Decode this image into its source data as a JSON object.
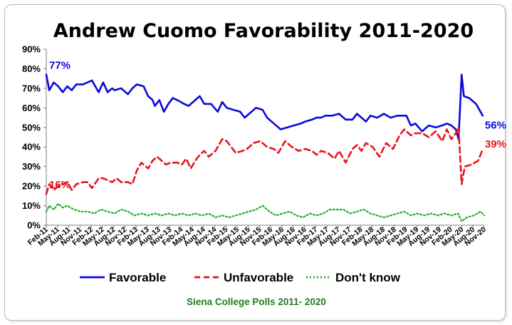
{
  "chart_data": {
    "type": "line",
    "title": "Andrew Cuomo Favorability 2011-2020",
    "source": "Siena College Polls 2011- 2020",
    "ylim": [
      0,
      90
    ],
    "y_ticks": [
      "0%",
      "10%",
      "20%",
      "30%",
      "40%",
      "50%",
      "60%",
      "70%",
      "80%",
      "90%"
    ],
    "y_unit": "%",
    "grid": false,
    "legend_position": "bottom",
    "x_tick_labels": [
      "Feb-11",
      "May-11",
      "Aug-11",
      "Nov-11",
      "Feb-12",
      "May-12",
      "Aug-12",
      "Nov-12",
      "Feb-13",
      "May-13",
      "Aug-13",
      "Nov-13",
      "Feb-14",
      "May-14",
      "Aug-14",
      "Nov-14",
      "Feb-15",
      "May-15",
      "Aug-15",
      "Nov-15",
      "Feb-16",
      "May-16",
      "Aug-16",
      "Nov-16",
      "Feb-17",
      "May-17",
      "Aug-17",
      "Nov-17",
      "Feb-18",
      "May-18",
      "Aug-18",
      "Nov-18",
      "Feb-19",
      "May-19",
      "Aug-19",
      "Nov-19",
      "Feb-20",
      "May-20",
      "Aug-20",
      "Nov-20"
    ],
    "x_ticks": [
      2011.083,
      2011.333,
      2011.583,
      2011.833,
      2012.083,
      2012.333,
      2012.583,
      2012.833,
      2013.083,
      2013.333,
      2013.583,
      2013.833,
      2014.083,
      2014.333,
      2014.583,
      2014.833,
      2015.083,
      2015.333,
      2015.583,
      2015.833,
      2016.083,
      2016.333,
      2016.583,
      2016.833,
      2017.083,
      2017.333,
      2017.583,
      2017.833,
      2018.083,
      2018.333,
      2018.583,
      2018.833,
      2019.083,
      2019.333,
      2019.583,
      2019.833,
      2020.083,
      2020.333,
      2020.583,
      2020.833
    ],
    "xlim": [
      2011.083,
      2020.833
    ],
    "series": [
      {
        "name": "Favorable",
        "color": "#0a0ad8",
        "dash": "solid",
        "x": [
          2011.083,
          2011.15,
          2011.25,
          2011.35,
          2011.45,
          2011.55,
          2011.65,
          2011.75,
          2011.9,
          2012.0,
          2012.1,
          2012.25,
          2012.35,
          2012.45,
          2012.55,
          2012.6,
          2012.75,
          2012.9,
          2013.0,
          2013.1,
          2013.25,
          2013.35,
          2013.45,
          2013.5,
          2013.6,
          2013.7,
          2013.8,
          2013.9,
          2014.0,
          2014.15,
          2014.25,
          2014.35,
          2014.5,
          2014.6,
          2014.75,
          2014.9,
          2015.0,
          2015.1,
          2015.25,
          2015.4,
          2015.5,
          2015.6,
          2015.75,
          2015.9,
          2016.0,
          2016.15,
          2016.3,
          2016.45,
          2016.6,
          2016.75,
          2016.85,
          2017.0,
          2017.1,
          2017.2,
          2017.3,
          2017.45,
          2017.6,
          2017.75,
          2017.9,
          2018.0,
          2018.1,
          2018.2,
          2018.3,
          2018.45,
          2018.6,
          2018.75,
          2018.9,
          2019.0,
          2019.1,
          2019.2,
          2019.3,
          2019.45,
          2019.6,
          2019.75,
          2019.9,
          2020.0,
          2020.1,
          2020.2,
          2020.26,
          2020.33,
          2020.38,
          2020.5,
          2020.65,
          2020.8
        ],
        "values": [
          77,
          69,
          73,
          71,
          68,
          71,
          69,
          72,
          72,
          73,
          74,
          68,
          73,
          68,
          70,
          69,
          70,
          67,
          70,
          72,
          71,
          66,
          64,
          61,
          64,
          58,
          62,
          65,
          64,
          62,
          61,
          63,
          66,
          62,
          62,
          58,
          63,
          60,
          59,
          58,
          55,
          57,
          60,
          59,
          55,
          52,
          49,
          50,
          51,
          52,
          53,
          54,
          55,
          55,
          56,
          56,
          57,
          54,
          54,
          57,
          55,
          53,
          56,
          55,
          57,
          55,
          56,
          56,
          56,
          51,
          52,
          48,
          51,
          50,
          51,
          52,
          51,
          49,
          44,
          77,
          66,
          65,
          62,
          56
        ],
        "first_label": "77%",
        "last_label": "56%"
      },
      {
        "name": "Unfavorable",
        "color": "#e8141b",
        "dash": "dashed",
        "x": [
          2011.083,
          2011.15,
          2011.25,
          2011.35,
          2011.45,
          2011.55,
          2011.65,
          2011.75,
          2011.9,
          2012.0,
          2012.1,
          2012.25,
          2012.35,
          2012.45,
          2012.55,
          2012.65,
          2012.75,
          2012.9,
          2013.0,
          2013.1,
          2013.2,
          2013.35,
          2013.45,
          2013.55,
          2013.65,
          2013.75,
          2013.85,
          2014.0,
          2014.1,
          2014.2,
          2014.3,
          2014.4,
          2014.5,
          2014.6,
          2014.7,
          2014.85,
          2015.0,
          2015.1,
          2015.2,
          2015.3,
          2015.45,
          2015.55,
          2015.7,
          2015.85,
          2016.0,
          2016.15,
          2016.25,
          2016.4,
          2016.55,
          2016.7,
          2016.85,
          2017.0,
          2017.1,
          2017.2,
          2017.35,
          2017.5,
          2017.6,
          2017.75,
          2017.9,
          2018.0,
          2018.1,
          2018.2,
          2018.35,
          2018.5,
          2018.65,
          2018.8,
          2018.95,
          2019.05,
          2019.2,
          2019.3,
          2019.45,
          2019.6,
          2019.75,
          2019.9,
          2020.0,
          2020.1,
          2020.2,
          2020.26,
          2020.33,
          2020.4,
          2020.55,
          2020.7,
          2020.8
        ],
        "values": [
          16,
          21,
          18,
          20,
          21,
          22,
          18,
          21,
          22,
          22,
          19,
          24,
          24,
          23,
          22,
          24,
          22,
          22,
          21,
          28,
          32,
          29,
          33,
          35,
          33,
          31,
          32,
          32,
          31,
          34,
          29,
          33,
          36,
          38,
          35,
          38,
          44,
          43,
          40,
          37,
          38,
          39,
          42,
          43,
          40,
          39,
          37,
          43,
          40,
          38,
          39,
          38,
          36,
          38,
          37,
          34,
          38,
          32,
          39,
          41,
          38,
          42,
          40,
          35,
          42,
          39,
          46,
          49,
          46,
          47,
          47,
          45,
          48,
          43,
          49,
          44,
          47,
          50,
          21,
          30,
          31,
          33,
          39
        ],
        "first_label": "16%",
        "last_label": "39%"
      },
      {
        "name": "Don't know",
        "color": "#22b02a",
        "dash": "dotted",
        "x": [
          2011.083,
          2011.15,
          2011.25,
          2011.35,
          2011.45,
          2011.55,
          2011.7,
          2011.85,
          2012.0,
          2012.15,
          2012.3,
          2012.45,
          2012.6,
          2012.75,
          2012.9,
          2013.05,
          2013.2,
          2013.35,
          2013.5,
          2013.65,
          2013.8,
          2013.95,
          2014.1,
          2014.25,
          2014.4,
          2014.55,
          2014.7,
          2014.85,
          2015.0,
          2015.15,
          2015.3,
          2015.45,
          2015.6,
          2015.75,
          2015.9,
          2016.05,
          2016.2,
          2016.35,
          2016.5,
          2016.65,
          2016.8,
          2016.95,
          2017.1,
          2017.25,
          2017.4,
          2017.55,
          2017.7,
          2017.85,
          2018.0,
          2018.15,
          2018.3,
          2018.45,
          2018.6,
          2018.75,
          2018.9,
          2019.05,
          2019.2,
          2019.35,
          2019.5,
          2019.65,
          2019.8,
          2019.95,
          2020.1,
          2020.25,
          2020.33,
          2020.45,
          2020.6,
          2020.75,
          2020.833
        ],
        "values": [
          7,
          10,
          8,
          11,
          9,
          10,
          8,
          7,
          7,
          6,
          8,
          7,
          6,
          8,
          7,
          5,
          6,
          5,
          6,
          5,
          6,
          5,
          6,
          5,
          6,
          5,
          6,
          4,
          5,
          4,
          5,
          6,
          7,
          8,
          10,
          7,
          5,
          6,
          7,
          5,
          4,
          6,
          5,
          6,
          8,
          8,
          8,
          6,
          7,
          8,
          6,
          5,
          4,
          5,
          6,
          7,
          5,
          6,
          5,
          6,
          5,
          6,
          5,
          6,
          2,
          4,
          5,
          7,
          5
        ]
      }
    ]
  }
}
